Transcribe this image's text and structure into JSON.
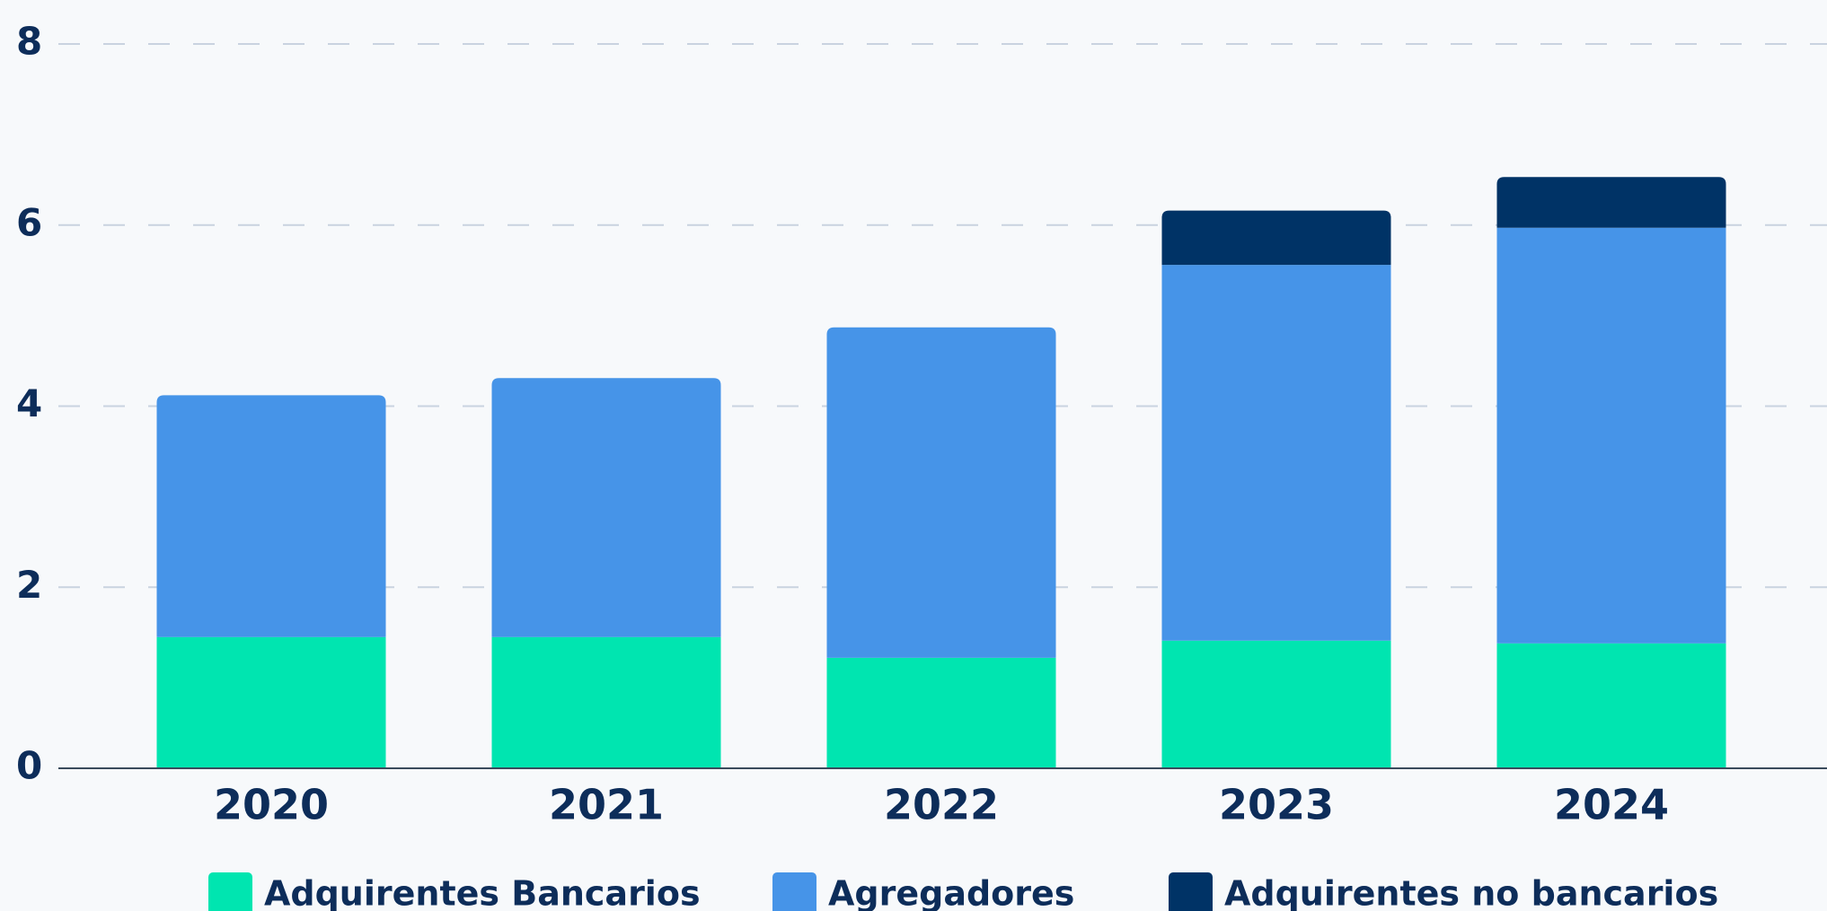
{
  "chart_data": {
    "type": "stacked_bar",
    "categories": [
      "2020",
      "2021",
      "2022",
      "2023",
      "2024"
    ],
    "series": [
      {
        "name": "Adquirentes Bancarios",
        "color": "#00e5b0",
        "values": [
          1.45,
          1.45,
          1.22,
          1.41,
          1.38
        ]
      },
      {
        "name": "Agregadores",
        "color": "#4694e8",
        "values": [
          2.67,
          2.86,
          3.65,
          4.15,
          4.59
        ]
      },
      {
        "name": "Adquirentes no bancarios",
        "color": "#003366",
        "values": [
          0,
          0,
          0,
          0.6,
          0.56
        ]
      }
    ],
    "ylim": [
      0,
      8
    ],
    "yticks": [
      0,
      2,
      4,
      6,
      8
    ],
    "grid": true,
    "legend": "bottom"
  }
}
